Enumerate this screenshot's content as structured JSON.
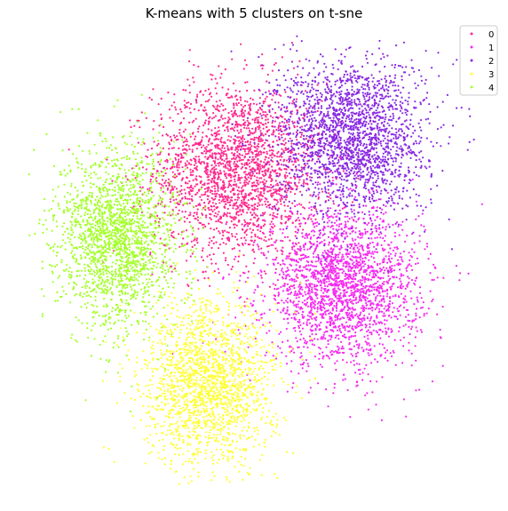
{
  "chart_data": {
    "type": "scatter",
    "title": "K-means with 5 clusters on t-sne",
    "xlabel": "",
    "ylabel": "",
    "axes_visible": false,
    "grid": false,
    "legend_placement": "top-right",
    "xlim": [
      -100,
      100
    ],
    "ylim": [
      -100,
      100
    ],
    "series": [
      {
        "name": "0",
        "color": "#ff2a8f",
        "approx_points": 2300,
        "description_free_density_regions": [
          {
            "center": [
              -8,
              40
            ],
            "spread": [
              28,
              30
            ],
            "weight": 1.0
          }
        ]
      },
      {
        "name": "1",
        "color": "#f52cf0",
        "approx_points": 2300,
        "description_free_density_regions": [
          {
            "center": [
              38,
              -12
            ],
            "spread": [
              26,
              26
            ],
            "weight": 1.0
          }
        ]
      },
      {
        "name": "2",
        "color": "#8a2be2",
        "approx_points": 2200,
        "description_free_density_regions": [
          {
            "center": [
              42,
              55
            ],
            "spread": [
              25,
              27
            ],
            "weight": 1.0
          }
        ]
      },
      {
        "name": "3",
        "color": "#ffff33",
        "approx_points": 1900,
        "description_free_density_regions": [
          {
            "center": [
              -20,
              -55
            ],
            "spread": [
              22,
              28
            ],
            "weight": 1.0
          }
        ]
      },
      {
        "name": "4",
        "color": "#a4ff2b",
        "approx_points": 2000,
        "description_free_density_regions": [
          {
            "center": [
              -60,
              10
            ],
            "spread": [
              20,
              30
            ],
            "weight": 1.0
          }
        ]
      }
    ]
  }
}
